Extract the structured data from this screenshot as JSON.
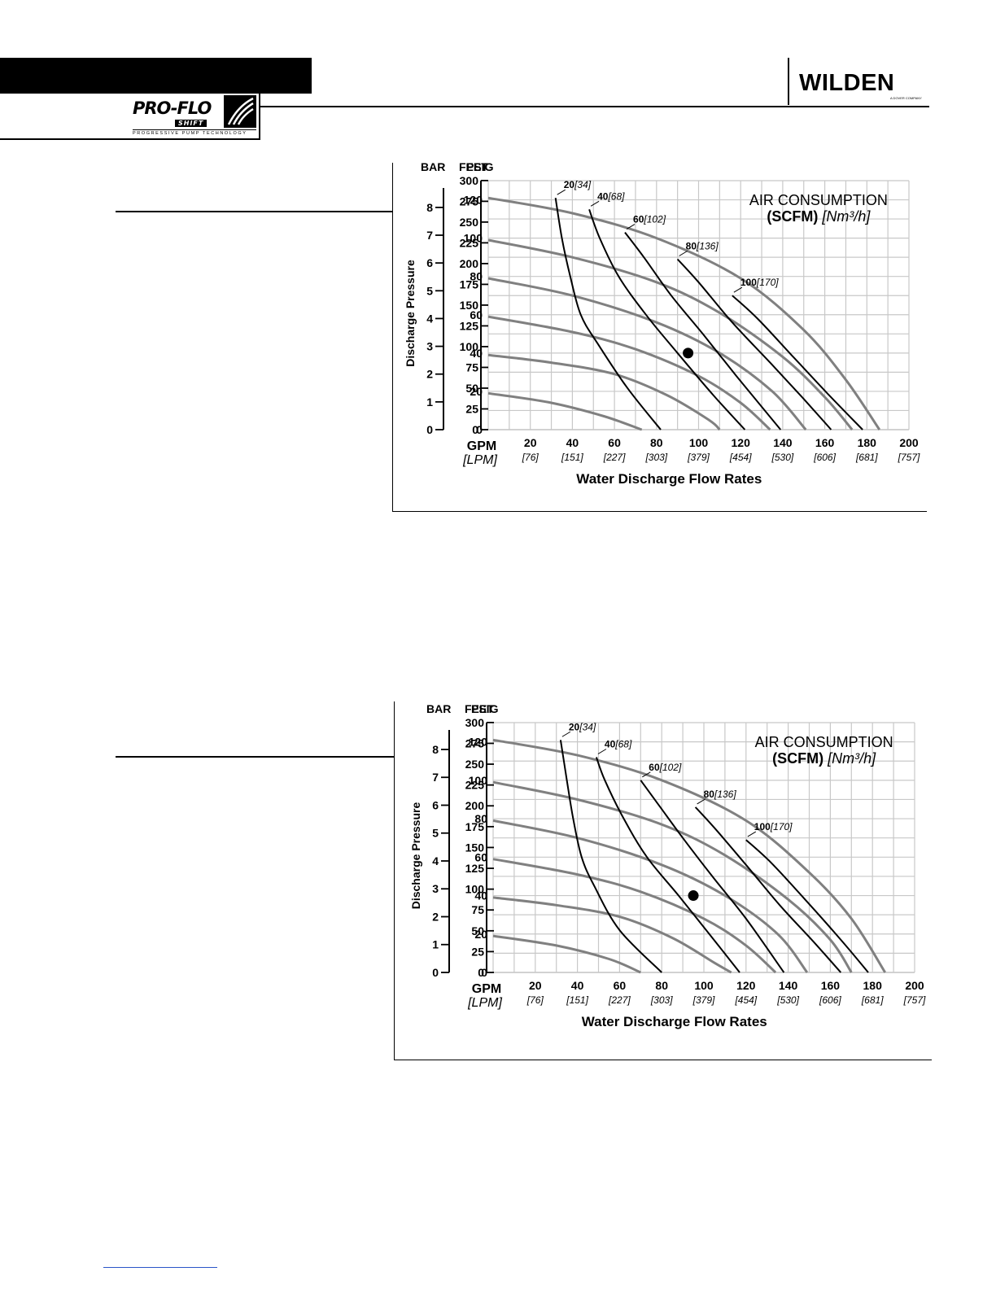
{
  "colors": {
    "grid": "#c8c8c8",
    "pressure_curve": "#808080",
    "air_curve": "#000000",
    "marker": "#000000"
  },
  "header": {
    "brand": "WILDEN",
    "brand_sub": "A DOVER COMPANY",
    "product_logo": "PRO-FLO",
    "product_logo_sub": "SHIFT",
    "product_tagline": "PROGRESSIVE PUMP TECHNOLOGY"
  },
  "chart_data": [
    {
      "type": "line",
      "left_axis_headings": {
        "bar": "BAR",
        "feet": "FEET",
        "psig": "PSIG"
      },
      "ylabel": "Discharge Pressure",
      "xlabel": "Water Discharge Flow Rates",
      "x_unit": "GPM",
      "x_unit_alt": "[LPM]",
      "legend_title": "AIR CONSUMPTION",
      "legend_units": "(SCFM)",
      "legend_units_alt": "[Nm³/h]",
      "xlim": [
        0,
        200
      ],
      "ylim": [
        0,
        130
      ],
      "grid": true,
      "x_ticks": [
        "20",
        "40",
        "60",
        "80",
        "100",
        "120",
        "140",
        "160",
        "180",
        "200"
      ],
      "x_ticks_alt": [
        "[76]",
        "[151]",
        "[227]",
        "[303]",
        "[379]",
        "[454]",
        "[530]",
        "[606]",
        "[681]",
        "[757]"
      ],
      "psig_ticks": [
        "0",
        "20",
        "40",
        "60",
        "80",
        "100",
        "120"
      ],
      "feet_ticks": [
        "0",
        "25",
        "50",
        "75",
        "100",
        "125",
        "150",
        "175",
        "200",
        "225",
        "250",
        "275",
        "300"
      ],
      "bar_ticks": [
        "0",
        "1",
        "2",
        "3",
        "4",
        "5",
        "6",
        "7",
        "8"
      ],
      "pressure_curves": [
        {
          "psig": 120,
          "points": [
            [
              0,
              121
            ],
            [
              40,
              113
            ],
            [
              80,
              100
            ],
            [
              120,
              79
            ],
            [
              150,
              52
            ],
            [
              170,
              26
            ],
            [
              186,
              0
            ]
          ]
        },
        {
          "psig": 100,
          "points": [
            [
              0,
              99
            ],
            [
              40,
              90
            ],
            [
              80,
              77
            ],
            [
              110,
              61
            ],
            [
              140,
              38
            ],
            [
              160,
              17
            ],
            [
              173,
              0
            ]
          ]
        },
        {
          "psig": 80,
          "points": [
            [
              0,
              79
            ],
            [
              40,
              70
            ],
            [
              80,
              56
            ],
            [
              110,
              40
            ],
            [
              135,
              20
            ],
            [
              151,
              0
            ]
          ]
        },
        {
          "psig": 60,
          "points": [
            [
              0,
              59
            ],
            [
              40,
              51
            ],
            [
              70,
              42
            ],
            [
              100,
              28
            ],
            [
              120,
              14
            ],
            [
              134,
              0
            ]
          ]
        },
        {
          "psig": 40,
          "points": [
            [
              0,
              39
            ],
            [
              30,
              35
            ],
            [
              60,
              29
            ],
            [
              85,
              18
            ],
            [
              105,
              5
            ],
            [
              110,
              0
            ]
          ]
        },
        {
          "psig": 20,
          "points": [
            [
              0,
              19
            ],
            [
              30,
              14
            ],
            [
              55,
              7
            ],
            [
              73,
              0
            ]
          ]
        }
      ],
      "air_curves": [
        {
          "scfm": "20",
          "nm3h": "[34]",
          "points": [
            [
              32,
              121
            ],
            [
              35,
              100
            ],
            [
              39,
              80
            ],
            [
              44,
              60
            ],
            [
              52,
              45
            ],
            [
              66,
              22
            ],
            [
              82,
              0
            ]
          ]
        },
        {
          "scfm": "40",
          "nm3h": "[68]",
          "points": [
            [
              48,
              115
            ],
            [
              53,
              100
            ],
            [
              62,
              80
            ],
            [
              75,
              60
            ],
            [
              90,
              40
            ],
            [
              107,
              18
            ],
            [
              122,
              0
            ]
          ]
        },
        {
          "scfm": "60",
          "nm3h": "[102]",
          "points": [
            [
              65,
              103
            ],
            [
              74,
              90
            ],
            [
              87,
              70
            ],
            [
              102,
              50
            ],
            [
              118,
              28
            ],
            [
              133,
              8
            ],
            [
              139,
              0
            ]
          ]
        },
        {
          "scfm": "80",
          "nm3h": "[136]",
          "points": [
            [
              90,
              89
            ],
            [
              100,
              77
            ],
            [
              116,
              56
            ],
            [
              134,
              35
            ],
            [
              150,
              16
            ],
            [
              163,
              0
            ]
          ]
        },
        {
          "scfm": "100",
          "nm3h": "[170]",
          "points": [
            [
              116,
              70
            ],
            [
              128,
              58
            ],
            [
              145,
              38
            ],
            [
              162,
              18
            ],
            [
              178,
              0
            ]
          ]
        }
      ],
      "marker": {
        "x": 95,
        "y": 40
      }
    },
    {
      "type": "line",
      "left_axis_headings": {
        "bar": "BAR",
        "feet": "FEET",
        "psig": "PSIG"
      },
      "ylabel": "Discharge Pressure",
      "xlabel": "Water Discharge Flow Rates",
      "x_unit": "GPM",
      "x_unit_alt": "[LPM]",
      "legend_title": "AIR CONSUMPTION",
      "legend_units": "(SCFM)",
      "legend_units_alt": "[Nm³/h]",
      "xlim": [
        0,
        200
      ],
      "ylim": [
        0,
        130
      ],
      "grid": true,
      "x_ticks": [
        "20",
        "40",
        "60",
        "80",
        "100",
        "120",
        "140",
        "160",
        "180",
        "200"
      ],
      "x_ticks_alt": [
        "[76]",
        "[151]",
        "[227]",
        "[303]",
        "[379]",
        "[454]",
        "[530]",
        "[606]",
        "[681]",
        "[757]"
      ],
      "psig_ticks": [
        "0",
        "20",
        "40",
        "60",
        "80",
        "100",
        "120"
      ],
      "feet_ticks": [
        "0",
        "25",
        "50",
        "75",
        "100",
        "125",
        "150",
        "175",
        "200",
        "225",
        "250",
        "275",
        "300"
      ],
      "bar_ticks": [
        "0",
        "1",
        "2",
        "3",
        "4",
        "5",
        "6",
        "7",
        "8"
      ],
      "pressure_curves": [
        {
          "psig": 120,
          "points": [
            [
              0,
              121
            ],
            [
              40,
              113
            ],
            [
              80,
              100
            ],
            [
              120,
              79
            ],
            [
              150,
              52
            ],
            [
              170,
              28
            ],
            [
              186,
              0
            ]
          ]
        },
        {
          "psig": 100,
          "points": [
            [
              0,
              99
            ],
            [
              40,
              90
            ],
            [
              80,
              77
            ],
            [
              110,
              61
            ],
            [
              140,
              38
            ],
            [
              160,
              17
            ],
            [
              170,
              0
            ]
          ]
        },
        {
          "psig": 80,
          "points": [
            [
              0,
              79
            ],
            [
              40,
              70
            ],
            [
              80,
              56
            ],
            [
              110,
              40
            ],
            [
              135,
              20
            ],
            [
              149,
              0
            ]
          ]
        },
        {
          "psig": 60,
          "points": [
            [
              0,
              59
            ],
            [
              40,
              51
            ],
            [
              70,
              42
            ],
            [
              100,
              28
            ],
            [
              120,
              14
            ],
            [
              134,
              0
            ]
          ]
        },
        {
          "psig": 40,
          "points": [
            [
              0,
              39
            ],
            [
              30,
              35
            ],
            [
              60,
              29
            ],
            [
              85,
              18
            ],
            [
              105,
              5
            ],
            [
              113,
              0
            ]
          ]
        },
        {
          "psig": 20,
          "points": [
            [
              0,
              19
            ],
            [
              30,
              14
            ],
            [
              55,
              7
            ],
            [
              70,
              0
            ]
          ]
        }
      ],
      "air_curves": [
        {
          "scfm": "20",
          "nm3h": "[34]",
          "points": [
            [
              32,
              121
            ],
            [
              35,
              100
            ],
            [
              38,
              80
            ],
            [
              42,
              60
            ],
            [
              48,
              45
            ],
            [
              60,
              22
            ],
            [
              80,
              0
            ]
          ]
        },
        {
          "scfm": "40",
          "nm3h": "[68]",
          "points": [
            [
              49,
              112
            ],
            [
              53,
              100
            ],
            [
              62,
              80
            ],
            [
              73,
              60
            ],
            [
              88,
              40
            ],
            [
              104,
              18
            ],
            [
              117,
              0
            ]
          ]
        },
        {
          "scfm": "60",
          "nm3h": "[102]",
          "points": [
            [
              70,
              100
            ],
            [
              78,
              88
            ],
            [
              90,
              70
            ],
            [
              104,
              50
            ],
            [
              120,
              28
            ],
            [
              138,
              0
            ]
          ]
        },
        {
          "scfm": "80",
          "nm3h": "[136]",
          "points": [
            [
              96,
              86
            ],
            [
              106,
              74
            ],
            [
              120,
              56
            ],
            [
              136,
              35
            ],
            [
              152,
              16
            ],
            [
              165,
              0
            ]
          ]
        },
        {
          "scfm": "100",
          "nm3h": "[170]",
          "points": [
            [
              120,
              69
            ],
            [
              132,
              57
            ],
            [
              148,
              38
            ],
            [
              165,
              17
            ],
            [
              178,
              0
            ]
          ]
        }
      ],
      "marker": {
        "x": 95,
        "y": 40
      }
    }
  ]
}
